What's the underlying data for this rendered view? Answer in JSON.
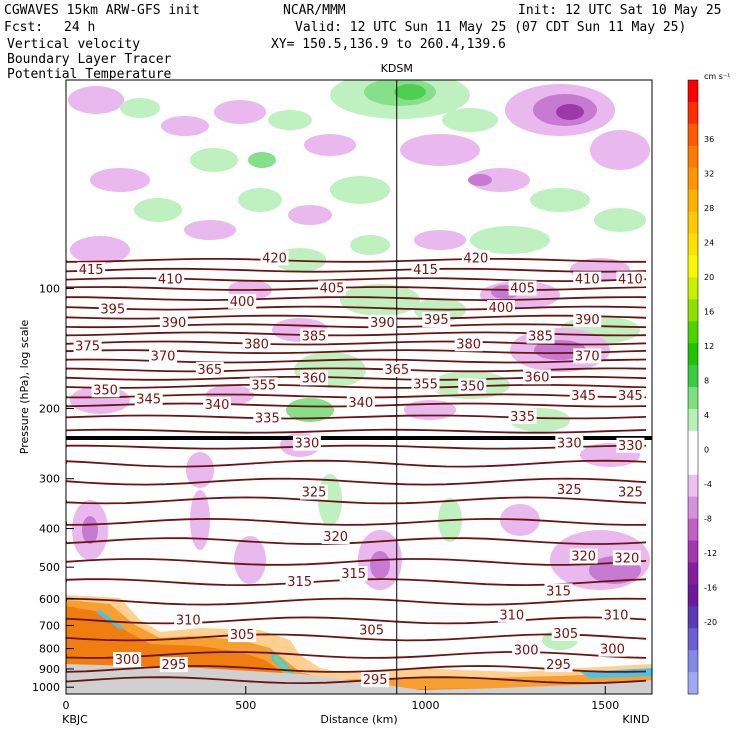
{
  "header": {
    "model": "CGWAVES 15km ARW-GFS init",
    "org": "NCAR/MMM",
    "init": "Init: 12 UTC Sat 10 May 25",
    "fcst_label": "Fcst:",
    "fcst_value": "24 h",
    "valid": "Valid: 12 UTC Sun 11 May 25 (07 CDT Sun 11 May 25)",
    "xy": "XY= 150.5,136.9 to 260.4,139.6",
    "field1": "Vertical velocity",
    "field2": "Boundary Layer Tracer",
    "field3": "Potential Temperature",
    "field3_color": "#8b1a1a"
  },
  "chart_data": {
    "type": "heatmap",
    "title": "",
    "xlabel": "Distance (km)",
    "ylabel": "Pressure (hPa), log scale",
    "xlim": [
      0,
      1630
    ],
    "x_ticks": [
      "0",
      "500",
      "1000",
      "1500"
    ],
    "y_scale": "log",
    "y_ticks": [
      "100",
      "200",
      "300",
      "400",
      "500",
      "600",
      "700",
      "800",
      "900",
      "1000"
    ],
    "start_label": "KBJC",
    "end_label": "KIND",
    "marker_label": "KDSM",
    "marker_x_km": 920,
    "colorbar": {
      "unit": "cm s⁻¹",
      "ticks": [
        "36",
        "32",
        "28",
        "24",
        "20",
        "16",
        "12",
        "8",
        "4",
        "0",
        "-4",
        "-8",
        "-12",
        "-16",
        "-20"
      ]
    },
    "theta_labels": [
      {
        "v": "415",
        "x": 70,
        "p": 90
      },
      {
        "v": "410",
        "x": 290,
        "p": 95
      },
      {
        "v": "420",
        "x": 580,
        "p": 84
      },
      {
        "v": "405",
        "x": 740,
        "p": 100
      },
      {
        "v": "415",
        "x": 1000,
        "p": 90
      },
      {
        "v": "420",
        "x": 1140,
        "p": 84
      },
      {
        "v": "405",
        "x": 1270,
        "p": 100
      },
      {
        "v": "410",
        "x": 1450,
        "p": 95
      },
      {
        "v": "410",
        "x": 1570,
        "p": 95
      },
      {
        "v": "395",
        "x": 130,
        "p": 113
      },
      {
        "v": "400",
        "x": 490,
        "p": 108
      },
      {
        "v": "390",
        "x": 300,
        "p": 122
      },
      {
        "v": "385",
        "x": 690,
        "p": 132
      },
      {
        "v": "390",
        "x": 880,
        "p": 122
      },
      {
        "v": "395",
        "x": 1030,
        "p": 120
      },
      {
        "v": "400",
        "x": 1210,
        "p": 112
      },
      {
        "v": "385",
        "x": 1320,
        "p": 132
      },
      {
        "v": "390",
        "x": 1450,
        "p": 120
      },
      {
        "v": "375",
        "x": 60,
        "p": 140
      },
      {
        "v": "370",
        "x": 270,
        "p": 148
      },
      {
        "v": "380",
        "x": 530,
        "p": 138
      },
      {
        "v": "380",
        "x": 1120,
        "p": 138
      },
      {
        "v": "370",
        "x": 1450,
        "p": 148
      },
      {
        "v": "365",
        "x": 400,
        "p": 160
      },
      {
        "v": "360",
        "x": 690,
        "p": 168
      },
      {
        "v": "365",
        "x": 920,
        "p": 160
      },
      {
        "v": "355",
        "x": 550,
        "p": 175
      },
      {
        "v": "355",
        "x": 1000,
        "p": 174
      },
      {
        "v": "350",
        "x": 1130,
        "p": 176
      },
      {
        "v": "360",
        "x": 1310,
        "p": 167
      },
      {
        "v": "350",
        "x": 110,
        "p": 180
      },
      {
        "v": "345",
        "x": 230,
        "p": 190
      },
      {
        "v": "340",
        "x": 420,
        "p": 196
      },
      {
        "v": "340",
        "x": 820,
        "p": 194
      },
      {
        "v": "345",
        "x": 1440,
        "p": 186
      },
      {
        "v": "345",
        "x": 1570,
        "p": 186
      },
      {
        "v": "335",
        "x": 560,
        "p": 212
      },
      {
        "v": "335",
        "x": 1270,
        "p": 210
      },
      {
        "v": "330",
        "x": 670,
        "p": 245
      },
      {
        "v": "330",
        "x": 1400,
        "p": 245
      },
      {
        "v": "330",
        "x": 1570,
        "p": 248
      },
      {
        "v": "325",
        "x": 690,
        "p": 325
      },
      {
        "v": "325",
        "x": 1400,
        "p": 320
      },
      {
        "v": "325",
        "x": 1570,
        "p": 325
      },
      {
        "v": "320",
        "x": 750,
        "p": 420
      },
      {
        "v": "320",
        "x": 1440,
        "p": 470
      },
      {
        "v": "320",
        "x": 1560,
        "p": 475
      },
      {
        "v": "315",
        "x": 650,
        "p": 545
      },
      {
        "v": "315",
        "x": 800,
        "p": 520
      },
      {
        "v": "315",
        "x": 1370,
        "p": 575
      },
      {
        "v": "310",
        "x": 340,
        "p": 680
      },
      {
        "v": "310",
        "x": 1240,
        "p": 660
      },
      {
        "v": "310",
        "x": 1530,
        "p": 660
      },
      {
        "v": "305",
        "x": 490,
        "p": 740
      },
      {
        "v": "305",
        "x": 850,
        "p": 720
      },
      {
        "v": "305",
        "x": 1390,
        "p": 735
      },
      {
        "v": "300",
        "x": 170,
        "p": 855
      },
      {
        "v": "300",
        "x": 1280,
        "p": 810
      },
      {
        "v": "300",
        "x": 1520,
        "p": 805
      },
      {
        "v": "295",
        "x": 300,
        "p": 880
      },
      {
        "v": "295",
        "x": 860,
        "p": 960
      },
      {
        "v": "295",
        "x": 1370,
        "p": 880
      }
    ]
  }
}
